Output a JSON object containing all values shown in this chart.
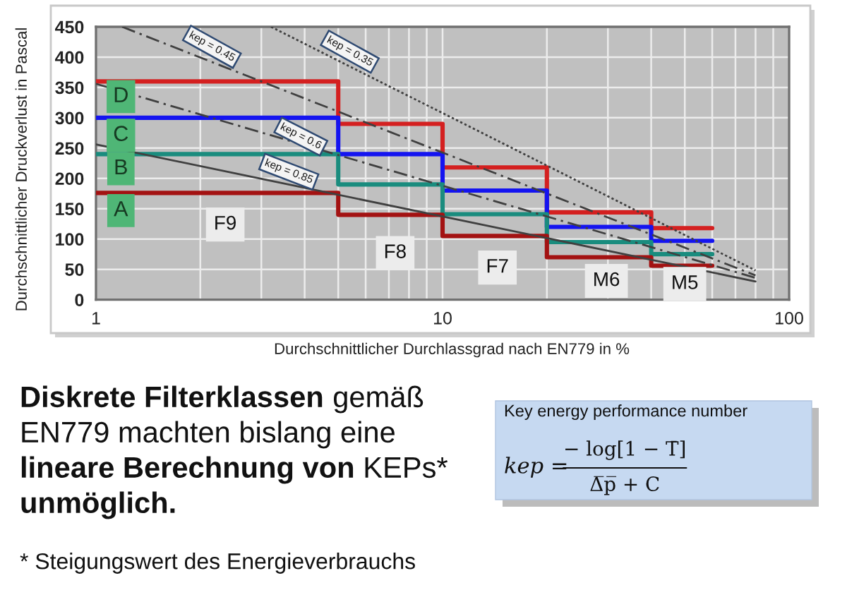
{
  "chart_data": {
    "type": "step",
    "xlabel": "Durchschnittlicher Durchlassgrad nach EN779 in %",
    "ylabel": "Durchschnittlicher Druckverlust in Pascal",
    "x": [
      1,
      5,
      10,
      20,
      40,
      60
    ],
    "series": [
      {
        "color": "#d42020",
        "values": [
          360,
          290,
          218,
          144,
          118,
          118
        ]
      },
      {
        "color": "#1414f0",
        "values": [
          300,
          240,
          180,
          120,
          97,
          97
        ]
      },
      {
        "color": "#1a8c7e",
        "values": [
          240,
          190,
          141,
          95,
          75,
          75
        ]
      },
      {
        "color": "#a31212",
        "values": [
          176,
          140,
          105,
          70,
          56,
          56
        ]
      },
      {
        "type": "line",
        "x": [
          3.2,
          80
        ],
        "values": [
          450,
          48
        ],
        "color": "#404040",
        "line_style": "dotted"
      },
      {
        "type": "line",
        "x": [
          1.19,
          80
        ],
        "values": [
          450,
          40
        ],
        "color": "#404040",
        "line_style": "dashed"
      },
      {
        "type": "line",
        "x": [
          1,
          80
        ],
        "values": [
          356,
          36
        ],
        "color": "#404040",
        "line_style": "dashed"
      },
      {
        "type": "line",
        "x": [
          1,
          80
        ],
        "values": [
          256,
          30
        ],
        "color": "#404040",
        "line_style": "solid"
      }
    ],
    "xlim": [
      1,
      100
    ],
    "xticks": [
      1,
      {
        "value": 2,
        "label": null
      },
      {
        "value": 3,
        "label": null
      },
      {
        "value": 4,
        "label": null
      },
      {
        "value": 5,
        "label": null
      },
      {
        "value": 6,
        "label": null
      },
      {
        "value": 7,
        "label": null
      },
      {
        "value": 8,
        "label": null
      },
      {
        "value": 9,
        "label": null
      },
      10,
      {
        "value": 20,
        "label": null
      },
      {
        "value": 30,
        "label": null
      },
      {
        "value": 40,
        "label": null
      },
      {
        "value": 50,
        "label": null
      },
      {
        "value": 60,
        "label": null
      },
      {
        "value": 70,
        "label": null
      },
      {
        "value": 80,
        "label": null
      },
      {
        "value": 90,
        "label": null
      },
      100
    ],
    "ylim": [
      0,
      450
    ],
    "yticks": [
      0,
      50,
      100,
      150,
      200,
      250,
      300,
      350,
      400,
      450
    ],
    "log": "x",
    "grid": true,
    "annotations": [
      {
        "text": "kep = 0.45",
        "x": 2.16,
        "y": 417
      },
      {
        "text": "kep = 0.35",
        "x": 5.4,
        "y": 409
      },
      {
        "text": "kep = 0.6",
        "x": 3.9,
        "y": 269
      },
      {
        "text": "kep = 0.85",
        "x": 3.6,
        "y": 211
      },
      {
        "text": "D",
        "x": 1.18,
        "y": 335
      },
      {
        "text": "C",
        "x": 1.18,
        "y": 271
      },
      {
        "text": "B",
        "x": 1.18,
        "y": 216
      },
      {
        "text": "A",
        "x": 1.18,
        "y": 147
      },
      {
        "text": "F9",
        "x": 2.36,
        "y": 124
      },
      {
        "text": "F8",
        "x": 7.3,
        "y": 77
      },
      {
        "text": "F7",
        "x": 14.4,
        "y": 53
      },
      {
        "text": "M6",
        "x": 29.7,
        "y": 31
      },
      {
        "text": "M5",
        "x": 50,
        "y": 26
      },
      "Diskrete Filterklassen",
      "gemäß",
      "EN779 machten bislang eine",
      "lineare Berechnung von",
      "KEPs*",
      "unmöglich.",
      "* Steigungswert des Energieverbrauchs",
      "Key energy performance number",
      "kep =",
      "− log[1 − T̄]",
      "Δ̅p̅ + C"
    ]
  }
}
